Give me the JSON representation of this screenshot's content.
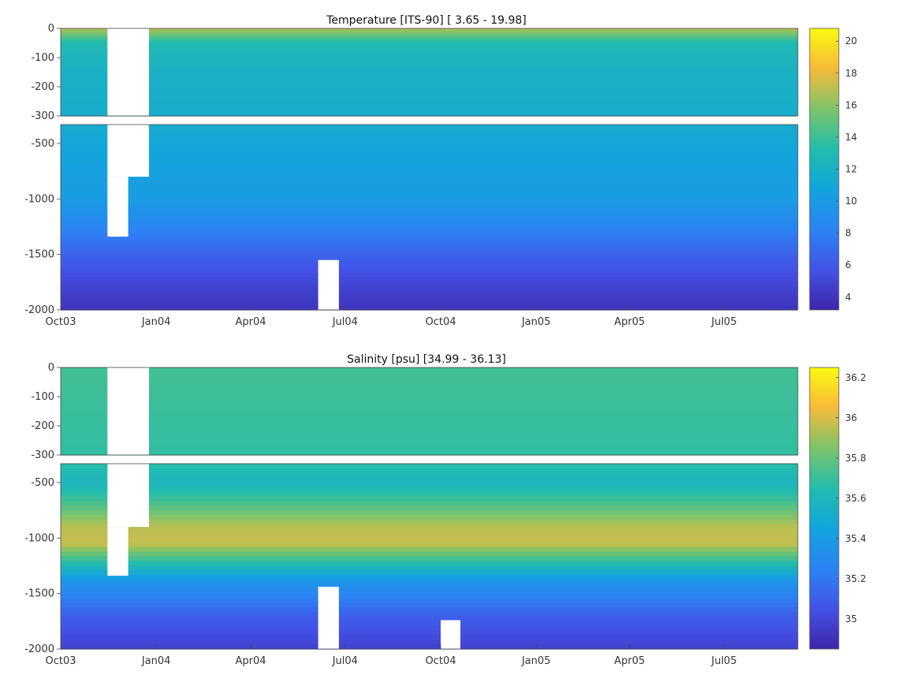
{
  "chart_data": [
    {
      "type": "heatmap",
      "variable": "temperature",
      "title": "Temperature [ITS-90]   [ 3.65 - 19.98]",
      "x_ticks": [
        "Oct03",
        "Jan04",
        "Apr04",
        "Jul04",
        "Oct04",
        "Jan05",
        "Apr05",
        "Jul05"
      ],
      "x_range": [
        "2003-10-01",
        "2005-09-10"
      ],
      "panels": [
        {
          "name": "upper",
          "ylim": [
            -300,
            0
          ],
          "y_ticks": [
            0,
            -100,
            -200,
            -300
          ]
        },
        {
          "name": "lower",
          "ylim": [
            -2000,
            -330
          ],
          "y_ticks": [
            -500,
            -1000,
            -1500,
            -2000
          ]
        }
      ],
      "colorbar": {
        "range": [
          3.2,
          20.8
        ],
        "ticks": [
          4,
          6,
          8,
          10,
          12,
          14,
          16,
          18,
          20
        ]
      },
      "value_range_printed": [
        3.65,
        19.98
      ],
      "depth_profile": [
        {
          "depth": 0,
          "value": 17
        },
        {
          "depth": -50,
          "value": 13
        },
        {
          "depth": -150,
          "value": 12
        },
        {
          "depth": -300,
          "value": 11.6
        },
        {
          "depth": -500,
          "value": 11
        },
        {
          "depth": -800,
          "value": 10.4
        },
        {
          "depth": -1000,
          "value": 10.2
        },
        {
          "depth": -1200,
          "value": 8.8
        },
        {
          "depth": -1500,
          "value": 6.5
        },
        {
          "depth": -1800,
          "value": 4.8
        },
        {
          "depth": -2000,
          "value": 4
        }
      ],
      "data_gaps": [
        {
          "start": "2003-11-15",
          "end": "2003-12-25",
          "top": 0,
          "bottom": -800
        },
        {
          "start": "2003-11-15",
          "end": "2003-12-05",
          "top": -800,
          "bottom": -1340
        },
        {
          "start": "2004-06-05",
          "end": "2004-06-25",
          "top": -1550,
          "bottom": -2000
        }
      ]
    },
    {
      "type": "heatmap",
      "variable": "salinity",
      "title": "Salinity [psu]   [34.99 - 36.13]",
      "x_ticks": [
        "Oct03",
        "Jan04",
        "Apr04",
        "Jul04",
        "Oct04",
        "Jan05",
        "Apr05",
        "Jul05"
      ],
      "x_range": [
        "2003-10-01",
        "2005-09-10"
      ],
      "panels": [
        {
          "name": "upper",
          "ylim": [
            -300,
            0
          ],
          "y_ticks": [
            0,
            -100,
            -200,
            -300
          ]
        },
        {
          "name": "lower",
          "ylim": [
            -2000,
            -330
          ],
          "y_ticks": [
            -500,
            -1000,
            -1500,
            -2000
          ]
        }
      ],
      "colorbar": {
        "range": [
          34.85,
          36.25
        ],
        "ticks": [
          35,
          35.2,
          35.4,
          35.6,
          35.8,
          36,
          36.2
        ]
      },
      "value_range_printed": [
        34.99,
        36.13
      ],
      "depth_profile": [
        {
          "depth": 0,
          "value": 35.72
        },
        {
          "depth": -300,
          "value": 35.68
        },
        {
          "depth": -500,
          "value": 35.58
        },
        {
          "depth": -700,
          "value": 35.75
        },
        {
          "depth": -900,
          "value": 35.95
        },
        {
          "depth": -1050,
          "value": 35.97
        },
        {
          "depth": -1200,
          "value": 35.7
        },
        {
          "depth": -1400,
          "value": 35.35
        },
        {
          "depth": -1700,
          "value": 35.1
        },
        {
          "depth": -2000,
          "value": 34.97
        }
      ],
      "data_gaps": [
        {
          "start": "2003-11-15",
          "end": "2003-12-25",
          "top": 0,
          "bottom": -900
        },
        {
          "start": "2003-11-15",
          "end": "2003-12-05",
          "top": -900,
          "bottom": -1340
        },
        {
          "start": "2004-06-05",
          "end": "2004-06-25",
          "top": -1440,
          "bottom": -2000
        },
        {
          "start": "2004-10-01",
          "end": "2004-10-20",
          "top": -1740,
          "bottom": -2000
        }
      ]
    }
  ]
}
